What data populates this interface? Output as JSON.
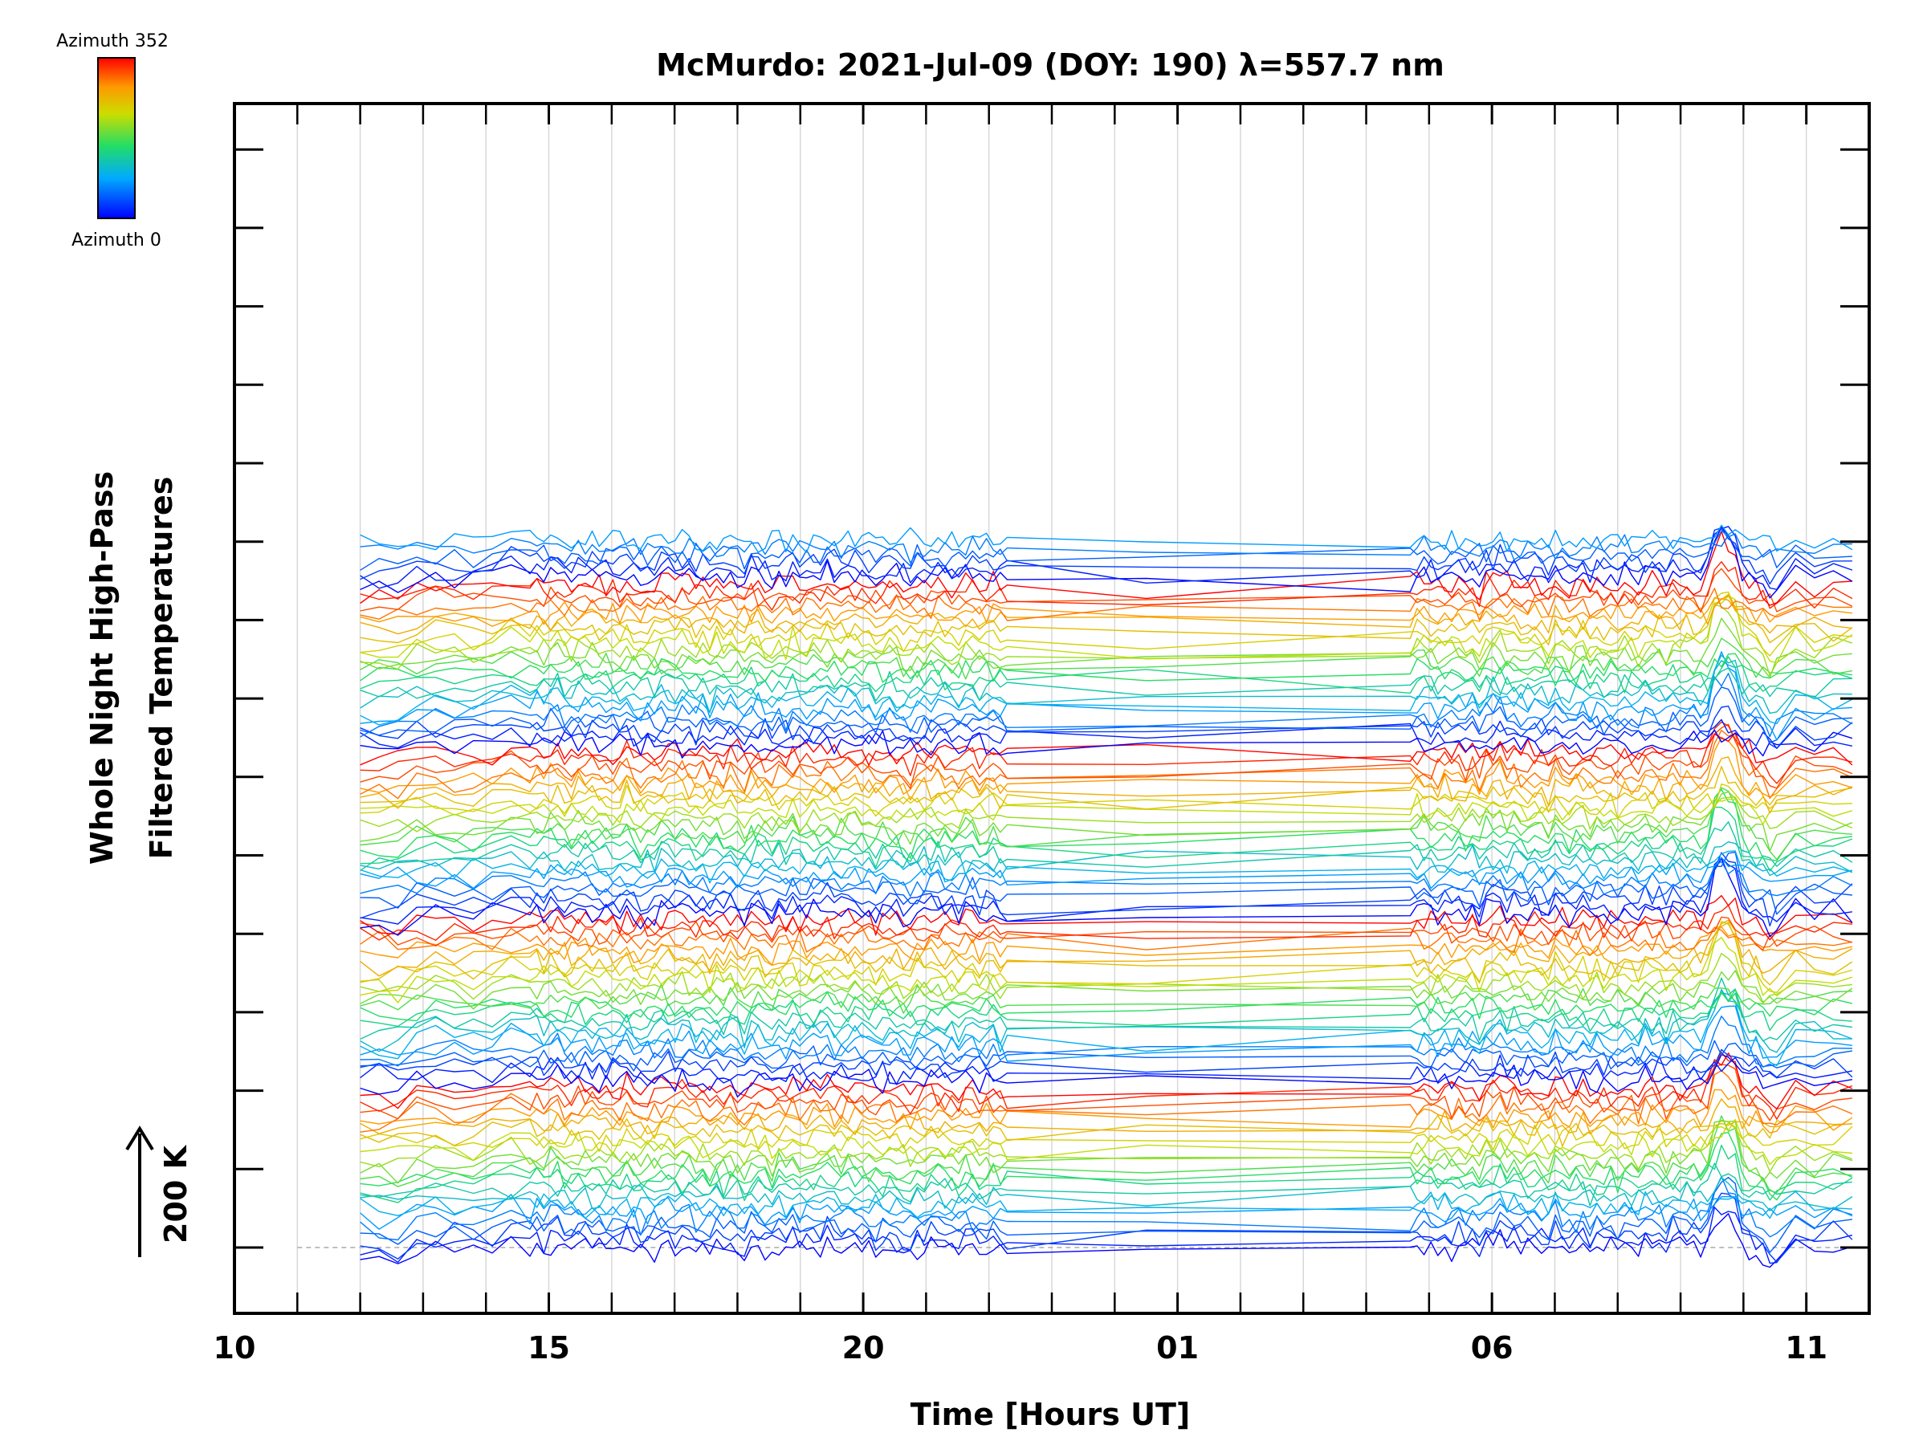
{
  "chart_data": {
    "type": "line",
    "title": "McMurdo: 2021-Jul-09 (DOY: 190) λ=557.7 nm",
    "xlabel": "Time [Hours UT]",
    "ylabel_line1": "Whole Night High-Pass",
    "ylabel_line2": "Filtered Temperatures",
    "scale_label": "200 K",
    "x_range_hours": [
      10,
      36
    ],
    "data_start_hour": 12,
    "data_end_hour": 35.8,
    "gap_hours": [
      [
        22.3,
        24.3
      ],
      [
        24.7,
        28.4
      ]
    ],
    "dense_ranges": [
      [
        14.5,
        22.3
      ],
      [
        28.4,
        34.5
      ]
    ],
    "x_tick_labels": [
      {
        "hour": 10,
        "label": "10"
      },
      {
        "hour": 15,
        "label": "15"
      },
      {
        "hour": 20,
        "label": "20"
      },
      {
        "hour": 25,
        "label": "01"
      },
      {
        "hour": 30,
        "label": "06"
      },
      {
        "hour": 35,
        "label": "11"
      }
    ],
    "major_y_ticks": 15,
    "baseline_offset": 0,
    "colorbar": {
      "top_label": "Azimuth 352",
      "bottom_label": "Azimuth 0",
      "azimuth_max": 352,
      "azimuth_min": 0
    },
    "azimuth_step": 16,
    "num_series": 98,
    "offset_step_k": 20
  }
}
